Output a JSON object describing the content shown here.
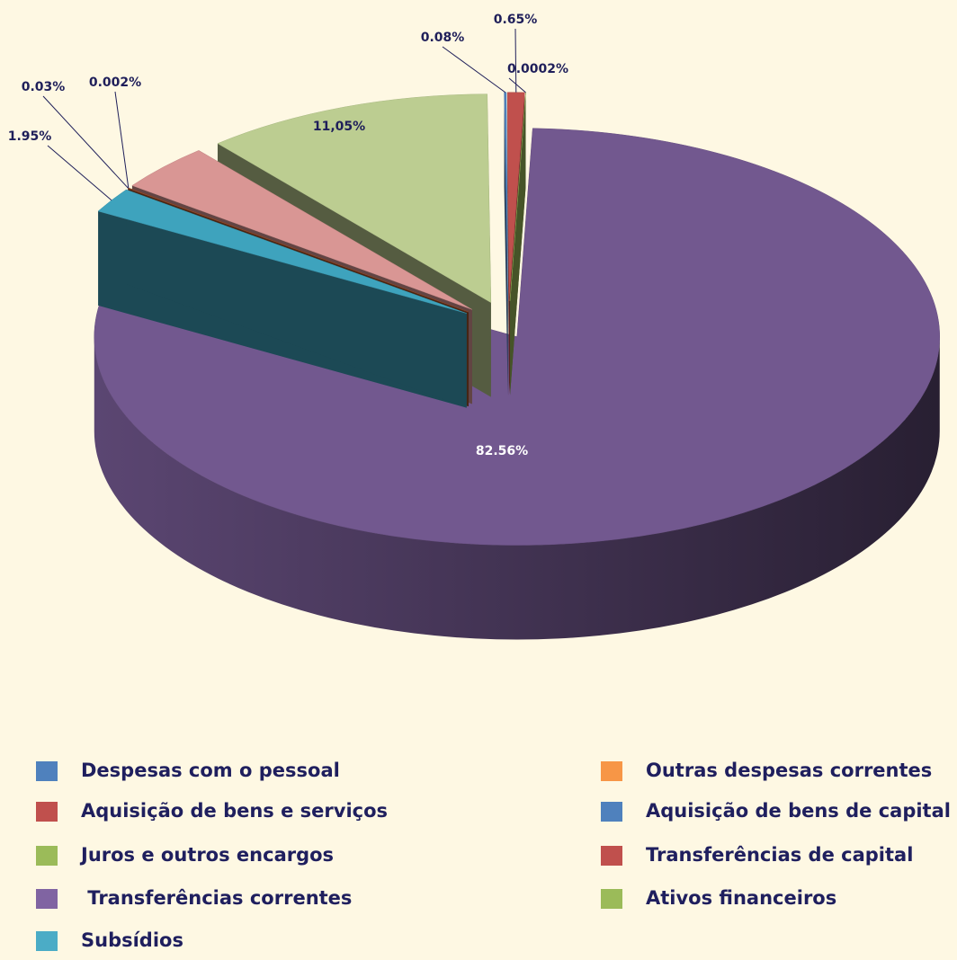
{
  "chart_data": {
    "type": "pie",
    "categories": [
      "Despesas com o pessoal",
      "Aquisição de bens e serviços",
      "Juros e outros encargos",
      " Transferências correntes",
      "Subsídios",
      "Outras despesas correntes",
      "Aquisição de bens de capital",
      "Transferências de capital",
      "Ativos financeiros"
    ],
    "values": [
      0.08,
      0.65,
      0.0002,
      82.56,
      1.95,
      0.03,
      0.002,
      3.68,
      11.05
    ],
    "value_labels": [
      "0.08%",
      "0.65%",
      "0.0002%",
      "82.56%",
      "1.95%",
      "0.03%",
      "0.002%",
      null,
      "11,05%"
    ],
    "colors": [
      "#4f81bd",
      "#c0504d",
      "#9bbb59",
      "#72588f",
      "#3ea3bd",
      "#a0522d",
      "#8b3a2a",
      "#d99694",
      "#bccd91"
    ],
    "legend_colors": [
      "#4f81bd",
      "#c0504d",
      "#9bbb59",
      "#8064a2",
      "#4bacc6",
      "#f79646",
      "#4f81bd",
      "#c0504d",
      "#9bbb59"
    ]
  }
}
